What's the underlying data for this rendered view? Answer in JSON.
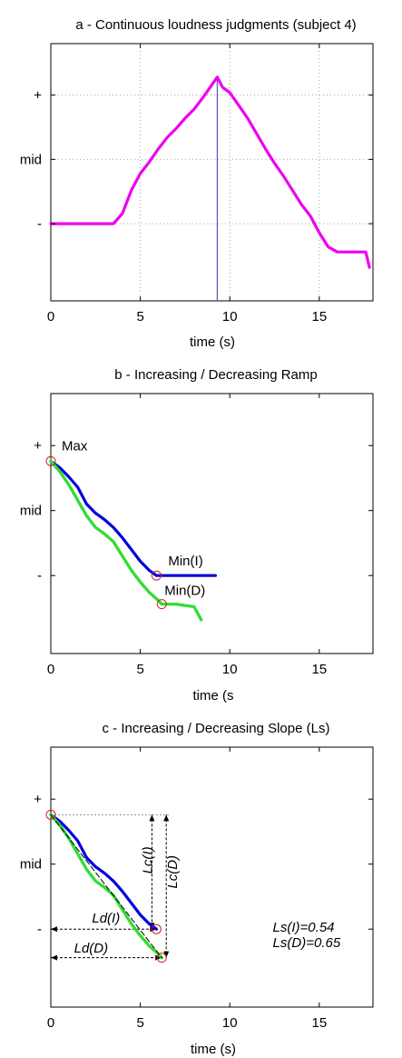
{
  "chart_data": [
    {
      "type": "line",
      "title": "a - Continuous loudness judgments (subject 4)",
      "xlabel": "time (s)",
      "ylabel": "",
      "xlim": [
        0,
        18
      ],
      "ylim": [
        -0.6,
        1.4
      ],
      "xticks": [
        0,
        5,
        10,
        15
      ],
      "xtick_labels": [
        "0",
        "5",
        "10",
        "15"
      ],
      "yticks": [
        0,
        0.5,
        1
      ],
      "ytick_labels": [
        "-",
        "mid",
        "+"
      ],
      "grid": true,
      "vline_x": 9.3,
      "series": [
        {
          "color": "#ee00ee",
          "style": "solid",
          "x": [
            0,
            3.5,
            4,
            4.5,
            5,
            5.5,
            6,
            6.5,
            7,
            7.5,
            8,
            8.5,
            9,
            9.3,
            9.6,
            10,
            10.5,
            11,
            11.5,
            12,
            12.5,
            13,
            13.5,
            14,
            14.5,
            15,
            15.5,
            16,
            16.5,
            17,
            17.5,
            17.6,
            17.8
          ],
          "y": [
            0,
            0,
            0.08,
            0.26,
            0.39,
            0.48,
            0.58,
            0.67,
            0.74,
            0.82,
            0.89,
            0.98,
            1.08,
            1.14,
            1.06,
            1.02,
            0.92,
            0.82,
            0.7,
            0.58,
            0.47,
            0.37,
            0.26,
            0.15,
            0.06,
            -0.07,
            -0.18,
            -0.22,
            -0.22,
            -0.22,
            -0.22,
            -0.22,
            -0.34
          ]
        }
      ]
    },
    {
      "type": "line",
      "title": "b - Increasing /  Decreasing Ramp",
      "xlabel": "time (s",
      "ylabel": "",
      "xlim": [
        0,
        18
      ],
      "ylim": [
        -0.6,
        1.4
      ],
      "xticks": [
        0,
        5,
        10,
        15
      ],
      "xtick_labels": [
        "0",
        "5",
        "10",
        "15"
      ],
      "yticks": [
        0,
        0.5,
        1
      ],
      "ytick_labels": [
        "-",
        "mid",
        "+"
      ],
      "grid": false,
      "annotations": [
        {
          "text": "Max",
          "x": 0,
          "y": 0.88
        },
        {
          "text": "Min(I)",
          "x": 5.9,
          "y": 0
        },
        {
          "text": "Min(D)",
          "x": 6.2,
          "y": -0.22
        }
      ],
      "series": [
        {
          "color": "#0000dd",
          "style": "solid",
          "x": [
            0,
            0.5,
            1,
            1.5,
            2,
            2.5,
            3,
            3.5,
            4,
            4.5,
            5,
            5.5,
            5.9,
            6.2,
            7,
            8,
            9.2
          ],
          "y": [
            0.88,
            0.83,
            0.76,
            0.68,
            0.55,
            0.48,
            0.43,
            0.37,
            0.29,
            0.2,
            0.11,
            0.04,
            0,
            0,
            0,
            0,
            0
          ]
        },
        {
          "color": "#33dd33",
          "style": "dashed",
          "x": [
            0,
            0.5,
            1,
            1.5,
            2,
            2.5,
            3,
            3.5,
            4,
            4.5,
            5,
            5.5,
            6,
            6.2,
            7,
            8,
            8.4
          ],
          "y": [
            0.88,
            0.8,
            0.7,
            0.58,
            0.46,
            0.37,
            0.32,
            0.26,
            0.15,
            0.04,
            -0.05,
            -0.13,
            -0.19,
            -0.22,
            -0.22,
            -0.24,
            -0.34
          ]
        }
      ],
      "markers": [
        {
          "x": 0,
          "y": 0.88
        },
        {
          "x": 5.9,
          "y": 0
        },
        {
          "x": 6.2,
          "y": -0.22
        }
      ]
    },
    {
      "type": "line",
      "title": "c - Increasing / Decreasing Slope (Ls)",
      "xlabel": "time (s)",
      "ylabel": "",
      "xlim": [
        0,
        18
      ],
      "ylim": [
        -0.6,
        1.4
      ],
      "xticks": [
        0,
        5,
        10,
        15
      ],
      "xtick_labels": [
        "0",
        "5",
        "10",
        "15"
      ],
      "yticks": [
        0,
        0.5,
        1
      ],
      "ytick_labels": [
        "-",
        "mid",
        "+"
      ],
      "grid": false,
      "annotations": [
        {
          "text": "Lc(I)",
          "x": 5.65,
          "y": 0.53,
          "rotate": -90
        },
        {
          "text": "Lc(D)",
          "x": 7.05,
          "y": 0.44,
          "rotate": -90
        },
        {
          "text": "Ld(I)",
          "x": 2.3,
          "y": 0.05
        },
        {
          "text": "Ld(D)",
          "x": 1.3,
          "y": -0.18
        },
        {
          "text": "Ls(I)=0.54",
          "x": 12.4,
          "y": -0.02
        },
        {
          "text": "Ls(D)=0.65",
          "x": 12.4,
          "y": -0.14
        }
      ],
      "series": [
        {
          "color": "#0000dd",
          "style": "solid",
          "x": [
            0,
            0.5,
            1,
            1.5,
            2,
            2.5,
            3,
            3.5,
            4,
            4.5,
            5,
            5.5,
            5.9
          ],
          "y": [
            0.88,
            0.83,
            0.76,
            0.68,
            0.55,
            0.48,
            0.43,
            0.37,
            0.29,
            0.2,
            0.11,
            0.04,
            0
          ]
        },
        {
          "color": "#33dd33",
          "style": "dashed",
          "x": [
            0,
            0.5,
            1,
            1.5,
            2,
            2.5,
            3,
            3.5,
            4,
            4.5,
            5,
            5.5,
            6,
            6.2
          ],
          "y": [
            0.88,
            0.8,
            0.7,
            0.58,
            0.46,
            0.37,
            0.32,
            0.26,
            0.15,
            0.04,
            -0.05,
            -0.13,
            -0.19,
            -0.22
          ]
        },
        {
          "color": "#000000",
          "style": "dashed",
          "x": [
            0,
            6.2
          ],
          "y": [
            0.88,
            -0.22
          ]
        }
      ],
      "markers": [
        {
          "x": 0,
          "y": 0.88
        },
        {
          "x": 5.9,
          "y": 0
        },
        {
          "x": 6.2,
          "y": -0.22
        }
      ]
    }
  ]
}
